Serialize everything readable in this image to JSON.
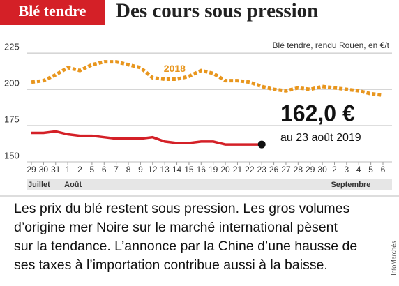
{
  "chart_data": {
    "type": "line",
    "tag": "Blé tendre",
    "title": "Des cours sous pression",
    "subtitle": "Blé tendre, rendu Rouen, en €/t",
    "categories": [
      "29",
      "30",
      "31",
      "1",
      "2",
      "5",
      "6",
      "7",
      "8",
      "9",
      "12",
      "13",
      "14",
      "15",
      "16",
      "19",
      "20",
      "21",
      "22",
      "23",
      "26",
      "27",
      "28",
      "29",
      "30",
      "2",
      "3",
      "4",
      "5",
      "6"
    ],
    "months": [
      "Juillet",
      "Août",
      "Septembre"
    ],
    "month_starts": [
      0,
      3,
      25
    ],
    "series": [
      {
        "name": "2018",
        "color": "#e8961e",
        "dashed": true,
        "values": [
          205,
          206,
          210,
          215,
          213,
          217,
          219,
          219,
          217,
          215,
          208,
          207,
          207,
          209,
          213,
          211,
          206,
          206,
          205,
          202,
          200,
          199,
          201,
          200,
          202,
          201,
          200,
          199,
          197,
          196
        ]
      },
      {
        "color": "#d42027",
        "dashed": false,
        "values": [
          170,
          170,
          171,
          169,
          168,
          168,
          167,
          166,
          166,
          166,
          167,
          164,
          163,
          163,
          164,
          164,
          162,
          162,
          162,
          162,
          null,
          null,
          null,
          null,
          null,
          null,
          null,
          null,
          null,
          null
        ]
      }
    ],
    "ylim": [
      150,
      227
    ],
    "yticks": [
      150,
      175,
      200,
      225
    ],
    "grid": true,
    "annotation_value": "162,0 €",
    "annotation_date": "au 23 août 2019",
    "text_lines": [
      "Les prix du blé restent sous pression. Les gros volumes",
      "d’origine mer Noire sur le marché international pèsent",
      "sur la tendance. L’annonce par la Chine d’une hausse de",
      "ses taxes à l’importation contribue aussi à la baisse."
    ],
    "source": "InfoMarchés"
  }
}
